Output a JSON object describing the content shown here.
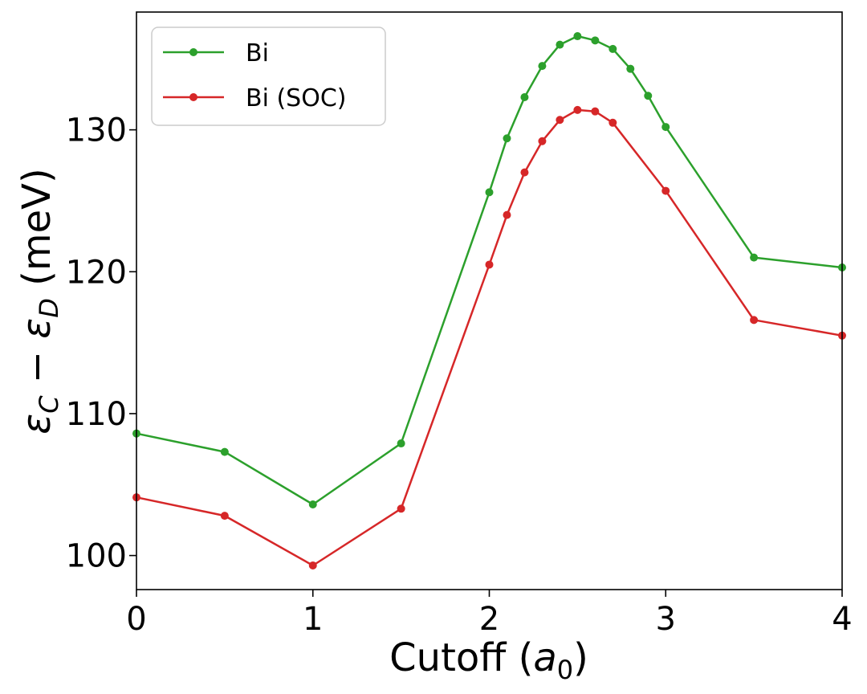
{
  "chart_data": {
    "type": "line",
    "xlabel": "Cutoff (a0)",
    "ylabel": "εC − εD (meV)",
    "xlim": [
      0,
      4
    ],
    "ylim": [
      97.6,
      138.3
    ],
    "xticks": [
      0,
      1,
      2,
      3,
      4
    ],
    "yticks": [
      100,
      110,
      120,
      130
    ],
    "grid": false,
    "legend_position": "top-left",
    "series": [
      {
        "name": "Bi",
        "color": "#2ca02c",
        "x": [
          0,
          0.5,
          1,
          1.5,
          2,
          2.1,
          2.2,
          2.3,
          2.4,
          2.5,
          2.6,
          2.7,
          2.8,
          2.9,
          3,
          3.5,
          4
        ],
        "y": [
          108.6,
          107.3,
          103.6,
          107.9,
          125.6,
          129.4,
          132.3,
          134.5,
          136.0,
          136.6,
          136.3,
          135.7,
          134.3,
          132.4,
          130.2,
          121.0,
          120.3
        ]
      },
      {
        "name": "Bi (SOC)",
        "color": "#d62728",
        "x": [
          0,
          0.5,
          1,
          1.5,
          2,
          2.1,
          2.2,
          2.3,
          2.4,
          2.5,
          2.6,
          2.7,
          3,
          3.5,
          4
        ],
        "y": [
          104.1,
          102.8,
          99.3,
          103.3,
          120.5,
          124.0,
          127.0,
          129.2,
          130.7,
          131.4,
          131.3,
          130.5,
          125.7,
          116.6,
          115.5
        ]
      }
    ]
  }
}
